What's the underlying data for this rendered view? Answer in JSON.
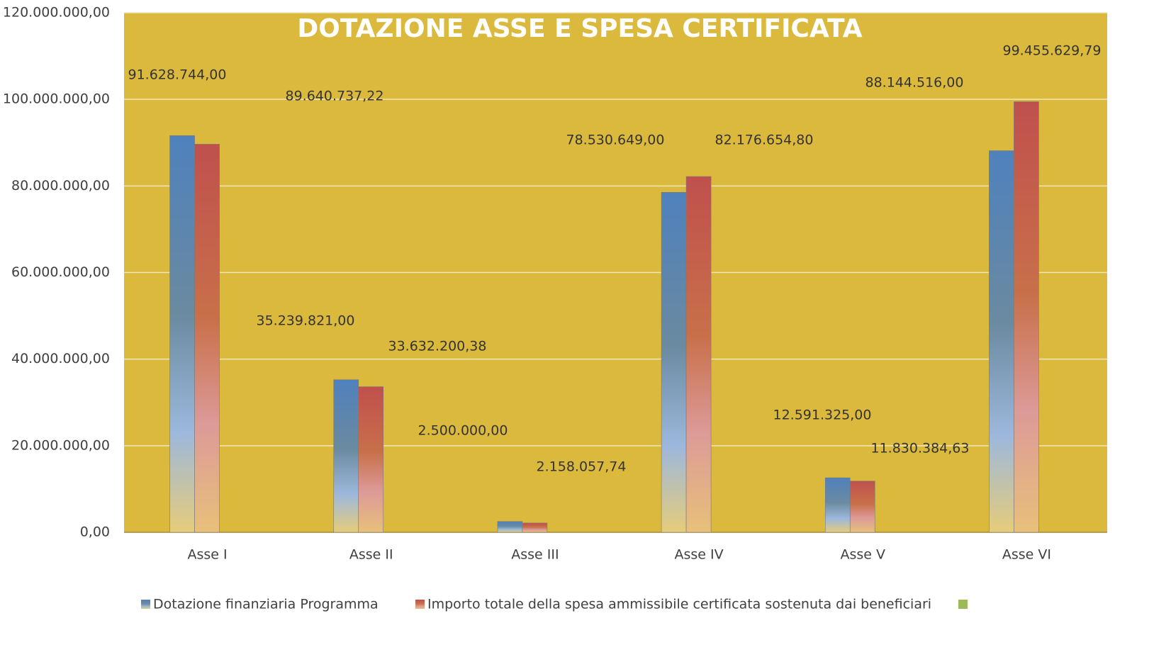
{
  "chart_data": {
    "type": "bar",
    "title": "DOTAZIONE ASSE E SPESA CERTIFICATA",
    "categories": [
      "Asse I",
      "Asse II",
      "Asse III",
      "Asse IV",
      "Asse V",
      "Asse VI"
    ],
    "series": [
      {
        "name": "Dotazione finanziaria Programma",
        "color": "#4f81bd",
        "values": [
          91628744.0,
          35239821.0,
          2500000.0,
          78530649.0,
          12591325.0,
          88144516.0
        ],
        "value_labels": [
          "91.628.744,00",
          "35.239.821,00",
          "2.500.000,00",
          "78.530.649,00",
          "12.591.325,00",
          "88.144.516,00"
        ]
      },
      {
        "name": "Importo totale della spesa ammissibile certificata sostenuta dai beneficiari",
        "color": "#c0504d",
        "values": [
          89640737.22,
          33632200.38,
          2158057.74,
          82176654.8,
          11830384.63,
          99455629.79
        ],
        "value_labels": [
          "89.640.737,22",
          "33.632.200,38",
          "2.158.057,74",
          "82.176.654,80",
          "11.830.384,63",
          "99.455.629,79"
        ]
      }
    ],
    "ylim": [
      0,
      120000000
    ],
    "yticks": [
      {
        "value": 0,
        "label": "0,00"
      },
      {
        "value": 20000000,
        "label": "20.000.000,00"
      },
      {
        "value": 40000000,
        "label": "40.000.000,00"
      },
      {
        "value": 60000000,
        "label": "60.000.000,00"
      },
      {
        "value": 80000000,
        "label": "80.000.000,00"
      },
      {
        "value": 100000000,
        "label": "100.000.000,00"
      },
      {
        "value": 120000000,
        "label": "120.000.000,00"
      }
    ],
    "grid": true
  }
}
